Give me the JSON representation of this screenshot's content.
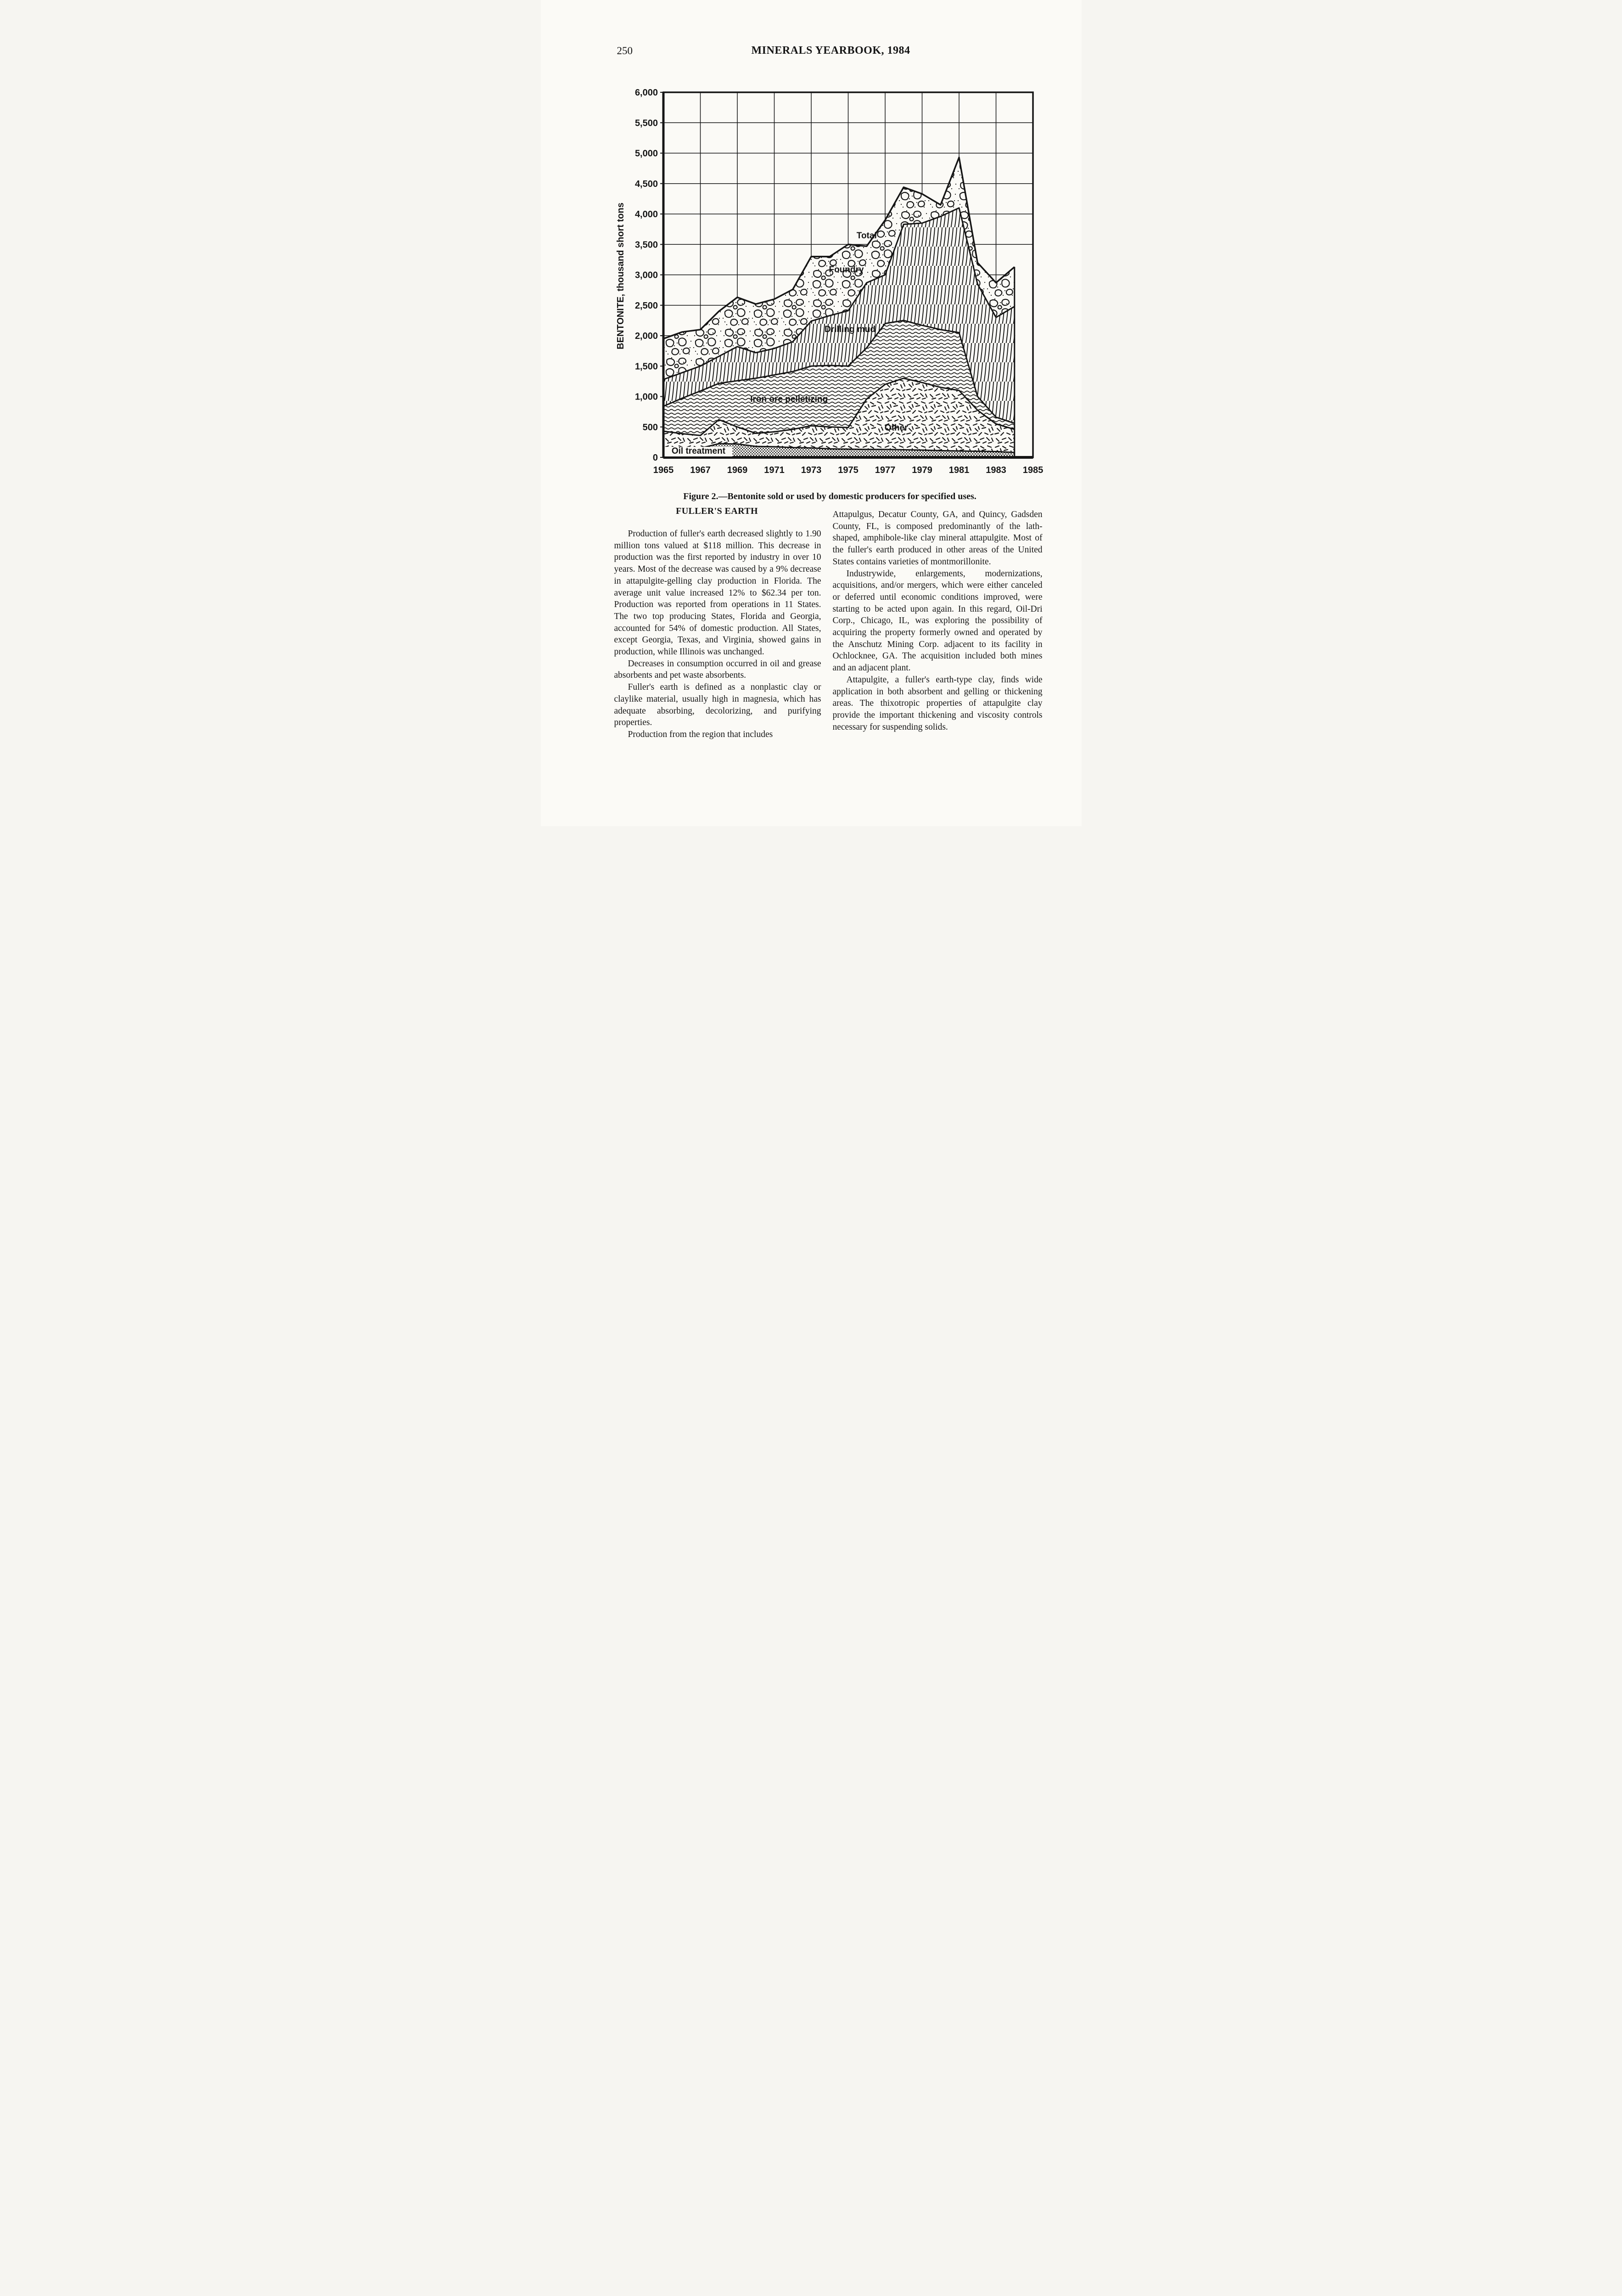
{
  "page": {
    "number": "250",
    "header": "MINERALS YEARBOOK, 1984"
  },
  "figure": {
    "caption": "Figure 2.—Bentonite sold or used by domestic producers for specified uses."
  },
  "article": {
    "heading": "FULLER'S EARTH",
    "left": [
      "Production of fuller's earth decreased slightly to 1.90 million tons valued at $118 million. This decrease in production was the first reported by industry in over 10 years. Most of the decrease was caused by a 9% decrease in attapulgite-gelling clay production in Florida. The average unit value increased 12% to $62.34 per ton. Production was reported from operations in 11 States. The two top producing States, Florida and Georgia, accounted for 54% of domestic production. All States, except Georgia, Texas, and Virginia, showed gains in production, while Illinois was unchanged.",
      "Decreases in consumption occurred in oil and grease absorbents and pet waste absorbents.",
      "Fuller's earth is defined as a nonplastic clay or claylike material, usually high in magnesia, which has adequate absorbing, decolorizing, and purifying properties.",
      "Production from the region that includes"
    ],
    "right": [
      "Attapulgus, Decatur County, GA, and Quincy, Gadsden County, FL, is composed predominantly of the lath-shaped, amphibole-like clay mineral attapulgite. Most of the fuller's earth produced in other areas of the United States contains varieties of montmorillonite.",
      "Industrywide, enlargements, modernizations, acquisitions, and/or mergers, which were either canceled or deferred until economic conditions improved, were starting to be acted upon again. In this regard, Oil-Dri Corp., Chicago, IL, was exploring the possibility of acquiring the property formerly owned and operated by the Anschutz Mining Corp. adjacent to its facility in Ochlocknee, GA. The acquisition included both mines and an adjacent plant.",
      "Attapulgite, a fuller's earth-type clay, finds wide application in both absorbent and gelling or thickening areas. The thixotropic properties of attapulgite clay provide the important thickening and viscosity controls necessary for suspending solids."
    ]
  },
  "chart_data": {
    "type": "area",
    "stacked": true,
    "title": "",
    "ylabel": "BENTONITE, thousand short tons",
    "xlabel": "",
    "ylim": [
      0,
      6000
    ],
    "ytick_step": 500,
    "xticks": [
      1965,
      1967,
      1969,
      1971,
      1973,
      1975,
      1977,
      1979,
      1981,
      1983,
      1985
    ],
    "x_years": [
      1965,
      1966,
      1967,
      1968,
      1969,
      1970,
      1971,
      1972,
      1973,
      1974,
      1975,
      1976,
      1977,
      1978,
      1979,
      1980,
      1981,
      1982,
      1983,
      1984
    ],
    "grid": true,
    "series": [
      {
        "name": "Oil treatment",
        "pattern": "halftone",
        "values": [
          140,
          145,
          150,
          225,
          220,
          180,
          175,
          160,
          155,
          140,
          135,
          130,
          130,
          125,
          120,
          110,
          105,
          100,
          95,
          80
        ]
      },
      {
        "name": "Other",
        "pattern": "confetti",
        "values": [
          290,
          245,
          210,
          395,
          280,
          215,
          245,
          300,
          365,
          360,
          355,
          830,
          1070,
          1175,
          1110,
          1040,
          995,
          675,
          455,
          380
        ]
      },
      {
        "name": "Iron ore pelletizing",
        "pattern": "waves",
        "values": [
          410,
          580,
          730,
          595,
          760,
          905,
          935,
          950,
          980,
          1010,
          1010,
          840,
          1000,
          950,
          940,
          950,
          950,
          225,
          110,
          100
        ]
      },
      {
        "name": "Drilling mud",
        "pattern": "hatch",
        "values": [
          440,
          420,
          410,
          445,
          560,
          420,
          435,
          490,
          740,
          820,
          910,
          1070,
          800,
          1580,
          1680,
          1860,
          2050,
          1850,
          1640,
          1920
        ]
      },
      {
        "name": "Foundry",
        "pattern": "pebbles",
        "values": [
          670,
          670,
          600,
          740,
          810,
          800,
          810,
          860,
          1060,
          970,
          1090,
          600,
          900,
          610,
          480,
          190,
          830,
          350,
          570,
          650
        ]
      }
    ],
    "totals": [
      1950,
      2060,
      2100,
      2400,
      2630,
      2520,
      2600,
      2760,
      3300,
      3300,
      3500,
      3470,
      3900,
      4440,
      4330,
      4150,
      4930,
      3200,
      2870,
      3130
    ],
    "labels": [
      {
        "text": "Total",
        "year": 1976.0,
        "value": 3600
      },
      {
        "text": "Foundry",
        "year": 1974.9,
        "value": 3040
      },
      {
        "text": "Drilling mud",
        "year": 1975.1,
        "value": 2060
      },
      {
        "text": "Iron ore pelletizing",
        "year": 1971.8,
        "value": 915
      },
      {
        "text": "Other",
        "year": 1977.6,
        "value": 440
      },
      {
        "text": "Oil treatment",
        "year": 1966.9,
        "value": 60,
        "boxed": true
      }
    ]
  }
}
